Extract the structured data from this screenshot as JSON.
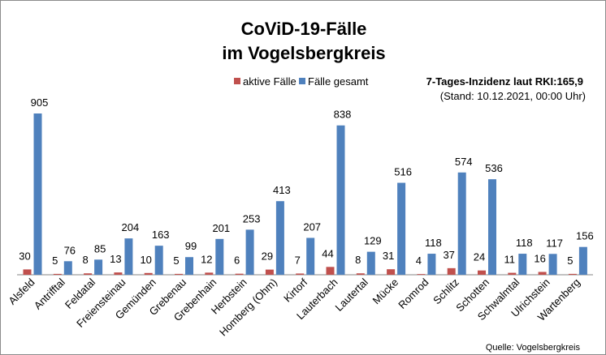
{
  "chart_data": {
    "type": "bar",
    "title": [
      "CoViD-19-Fälle",
      "im Vogelsbergkreis"
    ],
    "annotation_line1": "7-Tages-Inzidenz laut RKI:165,9",
    "annotation_line2": "(Stand: 10.12.2021, 00:00 Uhr)",
    "source": "Quelle: Vogelsbergkreis",
    "legend_position": "top",
    "grid": false,
    "ylim": [
      0,
      905
    ],
    "categories": [
      "Alsfeld",
      "Antrifftal",
      "Feldatal",
      "Freiensteinau",
      "Gemünden",
      "Grebenau",
      "Grebenhain",
      "Herbstein",
      "Homberg (Ohm)",
      "Kirtorf",
      "Lauterbach",
      "Lautertal",
      "Mücke",
      "Romrod",
      "Schlitz",
      "Schotten",
      "Schwalmtal",
      "Ulrichstein",
      "Wartenberg"
    ],
    "series": [
      {
        "name": "aktive Fälle",
        "color": "#c0504d",
        "values": [
          30,
          5,
          8,
          13,
          10,
          5,
          12,
          6,
          29,
          7,
          44,
          8,
          31,
          4,
          37,
          24,
          11,
          16,
          5
        ]
      },
      {
        "name": "Fälle gesamt",
        "color": "#4f81bd",
        "values": [
          905,
          76,
          85,
          204,
          163,
          99,
          201,
          253,
          413,
          207,
          838,
          129,
          516,
          118,
          574,
          536,
          118,
          117,
          156
        ]
      }
    ]
  }
}
